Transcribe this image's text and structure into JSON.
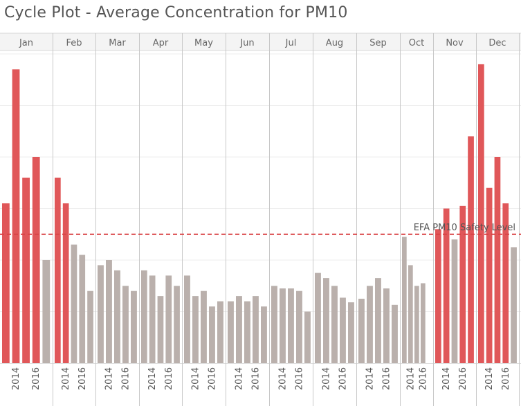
{
  "chart_data": {
    "type": "bar",
    "title": "Cycle Plot - Average Concentration for PM10",
    "xlabel": "",
    "ylabel": "",
    "months": [
      "Jan",
      "Feb",
      "Mar",
      "Apr",
      "May",
      "Jun",
      "Jul",
      "Aug",
      "Sep",
      "Oct",
      "Nov",
      "Dec"
    ],
    "years": [
      "2013",
      "2014",
      "2015",
      "2016",
      "2017"
    ],
    "tick_label_years": [
      "2014",
      "2016"
    ],
    "values": [
      [
        31,
        57,
        36,
        40,
        20
      ],
      [
        36,
        31,
        23,
        21,
        14
      ],
      [
        19,
        20,
        18,
        15,
        14
      ],
      [
        18,
        17,
        13,
        17,
        15
      ],
      [
        17,
        13,
        14,
        11,
        12
      ],
      [
        12,
        13,
        12,
        13,
        11
      ],
      [
        15,
        14.5,
        14.5,
        14,
        10
      ],
      [
        17.5,
        16.5,
        15,
        12.7,
        11.8
      ],
      [
        12.5,
        15,
        16.5,
        14.5,
        11.3
      ],
      [
        24.5,
        19,
        15,
        15.5,
        null
      ],
      [
        26,
        30,
        24,
        30.5,
        44
      ],
      [
        58,
        34,
        40,
        31,
        22.5
      ]
    ],
    "above_limit": [
      [
        true,
        true,
        true,
        true,
        false
      ],
      [
        true,
        true,
        false,
        false,
        false
      ],
      [
        false,
        false,
        false,
        false,
        false
      ],
      [
        false,
        false,
        false,
        false,
        false
      ],
      [
        false,
        false,
        false,
        false,
        false
      ],
      [
        false,
        false,
        false,
        false,
        false
      ],
      [
        false,
        false,
        false,
        false,
        false
      ],
      [
        false,
        false,
        false,
        false,
        false
      ],
      [
        false,
        false,
        false,
        false,
        false
      ],
      [
        false,
        false,
        false,
        false,
        false
      ],
      [
        true,
        true,
        false,
        true,
        true
      ],
      [
        true,
        true,
        true,
        true,
        false
      ]
    ],
    "reference_line": {
      "label": "EFA PM10 Safety Level",
      "value": 25
    },
    "ylim": [
      0,
      60
    ],
    "grid": true,
    "legend": "none"
  },
  "colors": {
    "above": "#e05759",
    "below": "#bab0ac",
    "reference": "#d94446",
    "divider": "#c8c8c8",
    "grid": "#eeeeee",
    "header_bg": "#f4f4f4"
  }
}
